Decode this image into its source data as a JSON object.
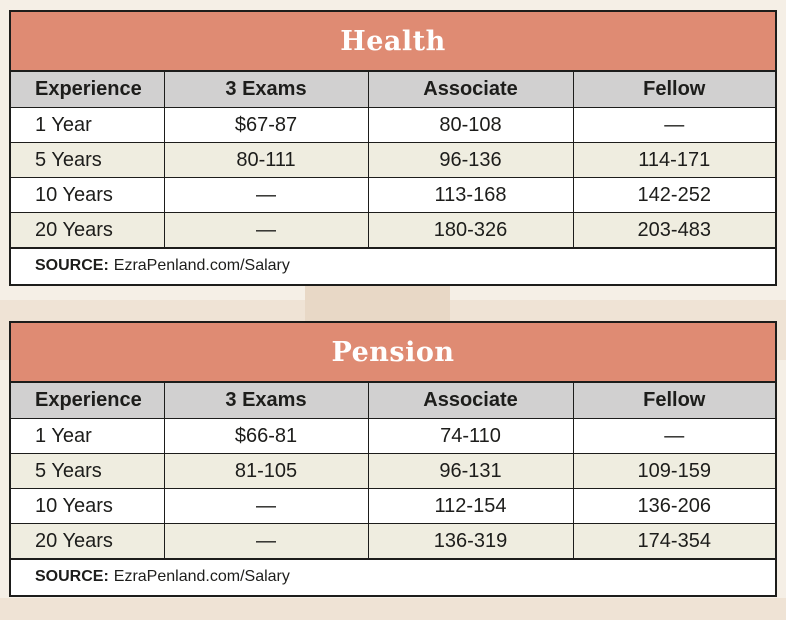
{
  "colors": {
    "title_bg": "#df8b73",
    "header_bg": "#d1d0d0",
    "alt_row_bg": "#efede0",
    "border": "#1d1d1b"
  },
  "chart_data": [
    {
      "type": "table",
      "title": "Health",
      "columns": [
        "Experience",
        "3 Exams",
        "Associate",
        "Fellow"
      ],
      "rows": [
        [
          "1 Year",
          "$67-87",
          "80-108",
          "—"
        ],
        [
          "5 Years",
          "80-111",
          "96-136",
          "114-171"
        ],
        [
          "10 Years",
          "—",
          "113-168",
          "142-252"
        ],
        [
          "20 Years",
          "—",
          "180-326",
          "203-483"
        ]
      ],
      "source_label": "SOURCE:",
      "source_text": "EzraPenland.com/Salary"
    },
    {
      "type": "table",
      "title": "Pension",
      "columns": [
        "Experience",
        "3 Exams",
        "Associate",
        "Fellow"
      ],
      "rows": [
        [
          "1 Year",
          "$66-81",
          "74-110",
          "—"
        ],
        [
          "5 Years",
          "81-105",
          "96-131",
          "109-159"
        ],
        [
          "10 Years",
          "—",
          "112-154",
          "136-206"
        ],
        [
          "20 Years",
          "—",
          "136-319",
          "174-354"
        ]
      ],
      "source_label": "SOURCE:",
      "source_text": "EzraPenland.com/Salary"
    }
  ]
}
